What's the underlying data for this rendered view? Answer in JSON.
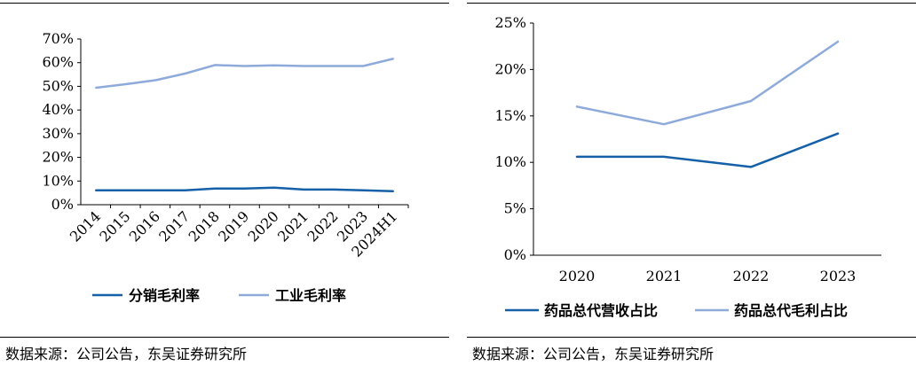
{
  "charts": [
    {
      "id": "left",
      "source": "数据来源：公司公告，东吴证券研究所",
      "chart_data": {
        "type": "line",
        "categories": [
          "2014",
          "2015",
          "2016",
          "2017",
          "2018",
          "2019",
          "2020",
          "2021",
          "2022",
          "2023",
          "2024H1"
        ],
        "series": [
          {
            "name": "分销毛利率",
            "color": "#1560a8",
            "values": [
              6.1,
              6.1,
              6.1,
              6.1,
              6.8,
              6.8,
              7.2,
              6.4,
              6.4,
              6.1,
              5.7
            ]
          },
          {
            "name": "工业毛利率",
            "color": "#8eaadb",
            "values": [
              49.4,
              50.9,
              52.6,
              55.4,
              59.0,
              58.6,
              58.9,
              58.6,
              58.6,
              58.6,
              61.6
            ]
          }
        ],
        "yticks": [
          "0%",
          "10%",
          "20%",
          "30%",
          "40%",
          "50%",
          "60%",
          "70%"
        ],
        "ylim": [
          0,
          70
        ],
        "xlabel": "",
        "ylabel": "",
        "title": "",
        "grid": false,
        "legend": "bottom"
      }
    },
    {
      "id": "right",
      "source": "数据来源：公司公告，东吴证券研究所",
      "chart_data": {
        "type": "line",
        "categories": [
          "2020",
          "2021",
          "2022",
          "2023"
        ],
        "series": [
          {
            "name": "药品总代营收占比",
            "color": "#1560a8",
            "values": [
              10.6,
              10.6,
              9.5,
              13.1
            ]
          },
          {
            "name": "药品总代毛利占比",
            "color": "#8eaadb",
            "values": [
              16.0,
              14.1,
              16.6,
              23.0
            ]
          }
        ],
        "yticks": [
          "0%",
          "5%",
          "10%",
          "15%",
          "20%",
          "25%"
        ],
        "ylim": [
          0,
          25
        ],
        "xlabel": "",
        "ylabel": "",
        "title": "",
        "grid": false,
        "legend": "bottom"
      }
    }
  ]
}
